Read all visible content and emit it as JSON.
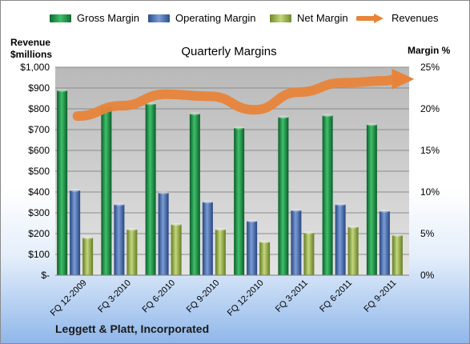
{
  "chart_data": {
    "type": "bar",
    "title": "Quarterly Margins",
    "company": "Leggett & Platt, Incorporated",
    "categories": [
      "FQ 12-2009",
      "FQ 3-2010",
      "FQ 6-2010",
      "FQ 9-2010",
      "FQ 12-2010",
      "FQ 3-2011",
      "FQ 6-2011",
      "FQ 9-2011"
    ],
    "y_left_label_line1": "Revenue",
    "y_left_label_line2": "$millions",
    "y_right_label": "Margin %",
    "y_left_ticks": [
      "$-",
      "$100",
      "$200",
      "$300",
      "$400",
      "$500",
      "$600",
      "$700",
      "$800",
      "$900",
      "$1,000"
    ],
    "y_right_ticks": [
      "0%",
      "5%",
      "10%",
      "15%",
      "20%",
      "25%"
    ],
    "ylim_left": [
      0,
      1000
    ],
    "ylim_right": [
      0,
      25
    ],
    "grid": true,
    "legend_position": "top",
    "series": [
      {
        "name": "Gross Margin",
        "axis": "right",
        "kind": "bar",
        "color": "#1f8f45",
        "values": [
          22.2,
          20.3,
          20.6,
          19.4,
          17.7,
          19.0,
          19.2,
          18.1
        ]
      },
      {
        "name": "Operating Margin",
        "axis": "right",
        "kind": "bar",
        "color": "#4a72b8",
        "values": [
          10.2,
          8.5,
          9.9,
          8.8,
          6.5,
          7.8,
          8.5,
          7.7
        ]
      },
      {
        "name": "Net Margin",
        "axis": "right",
        "kind": "bar",
        "color": "#98b54a",
        "values": [
          4.5,
          5.5,
          6.1,
          5.5,
          4.0,
          5.1,
          5.8,
          4.8
        ]
      },
      {
        "name": "Revenues",
        "axis": "left",
        "kind": "arrow-line",
        "color": "#e8843a",
        "values": [
          765,
          815,
          870,
          860,
          795,
          880,
          925,
          935
        ]
      }
    ]
  }
}
